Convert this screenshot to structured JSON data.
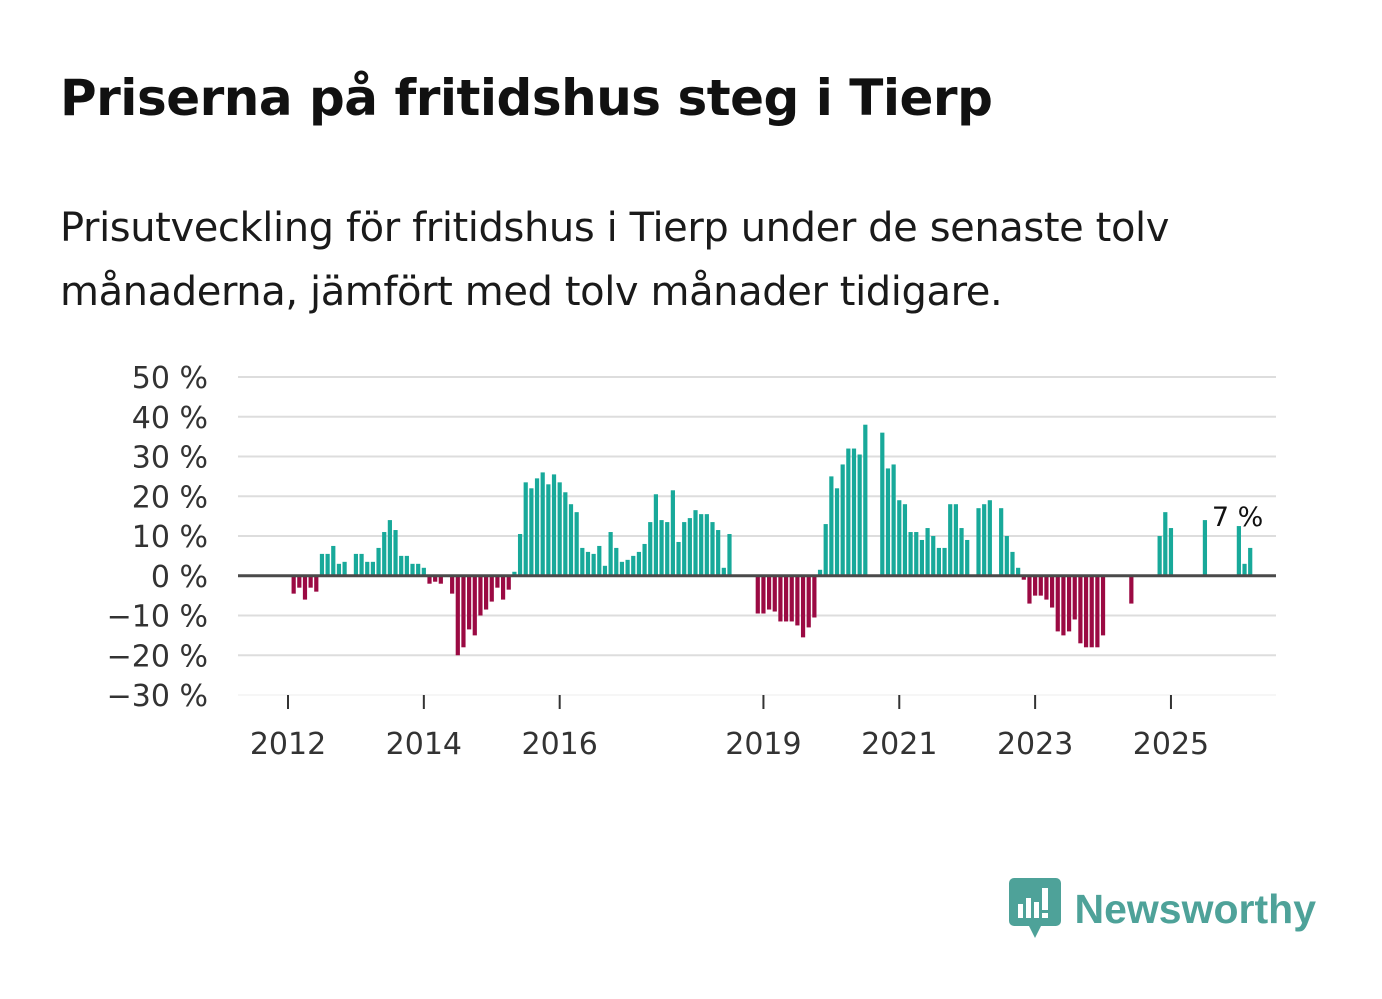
{
  "header": {
    "title": "Priserna på fritidshus steg i Tierp",
    "subtitle": "Prisutveckling för fritidshus i Tierp under de senaste tolv månaderna, jämfört med tolv månader tidigare."
  },
  "brand": {
    "name": "Newsworthy",
    "icon": "newsworthy-logo-icon"
  },
  "colors": {
    "positive": "#18a99a",
    "negative": "#9b0a43",
    "zero_line": "#4a4a4a",
    "grid": "#dddddd",
    "brand": "#4ea299"
  },
  "chart_data": {
    "type": "bar",
    "title": "Priserna på fritidshus steg i Tierp",
    "xlabel": "",
    "ylabel": "",
    "ylim": [
      -30,
      50
    ],
    "yticks": [
      50,
      40,
      30,
      20,
      10,
      0,
      -10,
      -20,
      -30
    ],
    "ytick_labels": [
      "50 %",
      "40 %",
      "30 %",
      "20 %",
      "10 %",
      "0 %",
      "−10 %",
      "−20 %",
      "−30 %"
    ],
    "xticks": [
      {
        "label": "2012",
        "month_index": 0
      },
      {
        "label": "2014",
        "month_index": 24
      },
      {
        "label": "2016",
        "month_index": 48
      },
      {
        "label": "2019",
        "month_index": 84
      },
      {
        "label": "2021",
        "month_index": 108
      },
      {
        "label": "2023",
        "month_index": 132
      },
      {
        "label": "2025",
        "month_index": 156
      }
    ],
    "start": "2012-01",
    "grid": true,
    "annotation": {
      "text": "7 %",
      "month_index": 166
    },
    "values": [
      0,
      -4.5,
      -3,
      -6,
      -3,
      -4,
      5.5,
      5.5,
      7.5,
      3,
      3.5,
      0,
      5.5,
      5.5,
      3.5,
      3.5,
      7,
      11,
      14,
      11.5,
      5,
      5,
      3,
      3,
      2,
      -2,
      -1.5,
      -2,
      0,
      -4.5,
      -20,
      -18,
      -13.5,
      -15,
      -10,
      -8.5,
      -6.5,
      -3,
      -6,
      -3.5,
      1,
      10.5,
      23.5,
      22,
      24.5,
      26,
      23,
      25.5,
      23.5,
      21,
      18,
      16,
      7,
      6,
      5.5,
      7.5,
      2.5,
      11,
      7,
      3.5,
      4,
      5,
      6,
      8,
      13.5,
      20.5,
      14,
      13.5,
      21.5,
      8.5,
      13.5,
      14.5,
      16.5,
      15.5,
      15.5,
      13.5,
      11.5,
      2,
      10.5,
      0,
      0,
      0,
      0,
      -9.5,
      -9.5,
      -8.5,
      -9,
      -11.5,
      -11.5,
      -11.5,
      -12.5,
      -15.5,
      -13,
      -10.5,
      1.5,
      13,
      25,
      22,
      28,
      32,
      32,
      30.5,
      38,
      0,
      0,
      36,
      27,
      28,
      19,
      18,
      11,
      11,
      9,
      12,
      10,
      7,
      7,
      18,
      18,
      12,
      9,
      0,
      17,
      18,
      19,
      0,
      17,
      10,
      6,
      2,
      -1,
      -7,
      -5,
      -5,
      -6,
      -8,
      -14,
      -15,
      -14,
      -11,
      -17,
      -18,
      -18,
      -18,
      -15,
      0,
      0,
      0,
      0,
      -7,
      0,
      0,
      0,
      0,
      10,
      16,
      12,
      0,
      0,
      0,
      0,
      0,
      14,
      0,
      0,
      0,
      0,
      0,
      12.5,
      3,
      7
    ]
  }
}
